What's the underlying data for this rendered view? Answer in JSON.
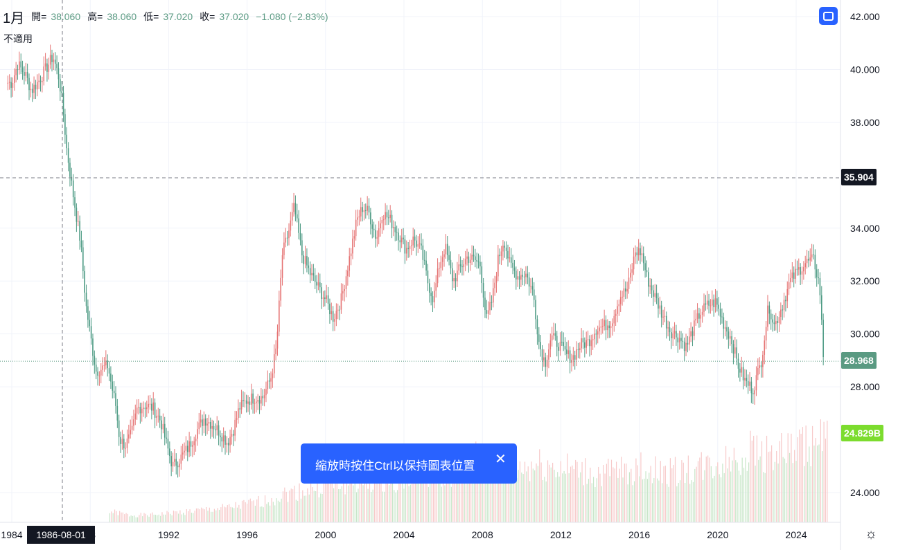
{
  "legend": {
    "symbol": "1月",
    "open_label": "開=",
    "open": "38.060",
    "high_label": "高=",
    "high": "38.060",
    "low_label": "低=",
    "low": "37.020",
    "close_label": "收=",
    "close": "37.020",
    "change": "−1.080 (−2.83%)",
    "subtitle": "不適用"
  },
  "price_axis_labels": [
    "42.000",
    "40.000",
    "38.000",
    "34.000",
    "32.000",
    "30.000",
    "28.000",
    "24.000"
  ],
  "time_axis_labels": [
    "1984",
    "8",
    "1992",
    "1996",
    "2000",
    "2004",
    "2008",
    "2012",
    "2016",
    "2020",
    "2024"
  ],
  "crosshair_price": "35.904",
  "crosshair_date": "1986-08-01",
  "last_price": "28.968",
  "volume_label": "24.829B",
  "toast": {
    "message": "縮放時按住Ctrl以保持圖表位置",
    "close": "✕"
  },
  "colors": {
    "up": "#ef9a9a",
    "up_candle": "#e57373",
    "down": "#26a69a",
    "down_candle": "#4c9a83",
    "last_price_tag": "#5a9a82",
    "volume_tag": "#7cdc2e",
    "crosshair_tag": "#131722",
    "button": "#2962ff",
    "grid": "#f0f3fa"
  },
  "chart_data": {
    "type": "candlestick",
    "interval": "1月",
    "y_unit": "price",
    "ylim": [
      23,
      43
    ],
    "xlim": [
      1983.7,
      2026.0
    ],
    "series": [
      {
        "name": "price",
        "points": [
          [
            1984.0,
            39.5
          ],
          [
            1984.3,
            40.2
          ],
          [
            1984.7,
            39.8
          ],
          [
            1985.0,
            39.2
          ],
          [
            1985.4,
            39.6
          ],
          [
            1985.8,
            40.1
          ],
          [
            1986.1,
            40.5
          ],
          [
            1986.4,
            39.7
          ],
          [
            1986.6,
            38.6
          ],
          [
            1986.8,
            37.0
          ],
          [
            1987.1,
            35.4
          ],
          [
            1987.5,
            33.5
          ],
          [
            1987.8,
            31.0
          ],
          [
            1988.1,
            29.5
          ],
          [
            1988.3,
            28.6
          ],
          [
            1988.6,
            28.7
          ],
          [
            1988.9,
            28.8
          ],
          [
            1989.1,
            28.0
          ],
          [
            1989.3,
            27.3
          ],
          [
            1989.5,
            26.0
          ],
          [
            1989.8,
            25.8
          ],
          [
            1990.1,
            26.2
          ],
          [
            1990.4,
            27.2
          ],
          [
            1990.8,
            27.3
          ],
          [
            1991.2,
            27.2
          ],
          [
            1991.6,
            26.7
          ],
          [
            1991.9,
            25.8
          ],
          [
            1992.2,
            25.0
          ],
          [
            1992.6,
            25.3
          ],
          [
            1993.0,
            25.7
          ],
          [
            1993.4,
            26.3
          ],
          [
            1993.8,
            26.8
          ],
          [
            1994.2,
            26.6
          ],
          [
            1994.6,
            26.3
          ],
          [
            1995.0,
            25.9
          ],
          [
            1995.3,
            26.4
          ],
          [
            1995.6,
            27.2
          ],
          [
            1996.0,
            27.5
          ],
          [
            1996.4,
            27.6
          ],
          [
            1996.8,
            27.6
          ],
          [
            1997.2,
            28.3
          ],
          [
            1997.5,
            29.5
          ],
          [
            1997.8,
            33.0
          ],
          [
            1998.1,
            33.8
          ],
          [
            1998.4,
            34.8
          ],
          [
            1998.8,
            33.0
          ],
          [
            1999.2,
            32.3
          ],
          [
            1999.6,
            31.8
          ],
          [
            2000.0,
            31.3
          ],
          [
            2000.4,
            30.6
          ],
          [
            2000.8,
            31.3
          ],
          [
            2001.2,
            32.8
          ],
          [
            2001.6,
            34.3
          ],
          [
            2001.9,
            34.8
          ],
          [
            2002.2,
            34.6
          ],
          [
            2002.6,
            33.6
          ],
          [
            2002.9,
            34.6
          ],
          [
            2003.3,
            34.3
          ],
          [
            2003.7,
            33.8
          ],
          [
            2004.1,
            33.2
          ],
          [
            2004.5,
            33.6
          ],
          [
            2004.9,
            33.1
          ],
          [
            2005.2,
            32.0
          ],
          [
            2005.5,
            31.3
          ],
          [
            2005.8,
            32.6
          ],
          [
            2006.1,
            33.3
          ],
          [
            2006.5,
            32.0
          ],
          [
            2006.8,
            32.4
          ],
          [
            2007.2,
            32.9
          ],
          [
            2007.6,
            32.8
          ],
          [
            2007.9,
            32.6
          ],
          [
            2008.2,
            30.5
          ],
          [
            2008.5,
            31.3
          ],
          [
            2008.8,
            32.8
          ],
          [
            2009.1,
            33.6
          ],
          [
            2009.4,
            32.6
          ],
          [
            2009.8,
            32.2
          ],
          [
            2010.2,
            32.3
          ],
          [
            2010.6,
            31.5
          ],
          [
            2010.9,
            29.6
          ],
          [
            2011.2,
            28.9
          ],
          [
            2011.5,
            29.9
          ],
          [
            2011.9,
            29.6
          ],
          [
            2012.3,
            29.2
          ],
          [
            2012.6,
            29.1
          ],
          [
            2013.0,
            29.6
          ],
          [
            2013.4,
            29.7
          ],
          [
            2013.8,
            30.2
          ],
          [
            2014.2,
            30.3
          ],
          [
            2014.6,
            30.5
          ],
          [
            2015.0,
            31.4
          ],
          [
            2015.4,
            31.7
          ],
          [
            2015.8,
            33.1
          ],
          [
            2016.1,
            33.1
          ],
          [
            2016.4,
            32.1
          ],
          [
            2016.8,
            31.4
          ],
          [
            2017.2,
            30.7
          ],
          [
            2017.6,
            30.1
          ],
          [
            2018.0,
            29.9
          ],
          [
            2018.4,
            29.5
          ],
          [
            2018.7,
            30.1
          ],
          [
            2019.1,
            30.8
          ],
          [
            2019.5,
            31.1
          ],
          [
            2019.9,
            31.2
          ],
          [
            2020.3,
            30.4
          ],
          [
            2020.7,
            29.8
          ],
          [
            2021.0,
            28.9
          ],
          [
            2021.4,
            28.2
          ],
          [
            2021.8,
            27.9
          ],
          [
            2022.2,
            28.9
          ],
          [
            2022.6,
            31.1
          ],
          [
            2022.9,
            30.3
          ],
          [
            2023.3,
            31.1
          ],
          [
            2023.7,
            32.0
          ],
          [
            2024.1,
            32.4
          ],
          [
            2024.5,
            32.7
          ],
          [
            2024.9,
            32.8
          ],
          [
            2025.2,
            31.8
          ],
          [
            2025.4,
            28.97
          ]
        ]
      },
      {
        "name": "volume",
        "points": [
          [
            1989,
            3
          ],
          [
            1990,
            2
          ],
          [
            1991,
            2
          ],
          [
            1992,
            2.5
          ],
          [
            1993,
            3
          ],
          [
            1994,
            3.5
          ],
          [
            1995,
            4
          ],
          [
            1996,
            5
          ],
          [
            1997,
            6
          ],
          [
            1998,
            8
          ],
          [
            1999,
            9
          ],
          [
            2000,
            10
          ],
          [
            2001,
            11
          ],
          [
            2002,
            11
          ],
          [
            2003,
            12
          ],
          [
            2004,
            12
          ],
          [
            2005,
            13
          ],
          [
            2006,
            13
          ],
          [
            2007,
            15
          ],
          [
            2008,
            18
          ],
          [
            2009,
            16
          ],
          [
            2010,
            15
          ],
          [
            2011,
            16
          ],
          [
            2012,
            15
          ],
          [
            2013,
            14
          ],
          [
            2014,
            13
          ],
          [
            2015,
            14
          ],
          [
            2016,
            15
          ],
          [
            2017,
            14
          ],
          [
            2018,
            14
          ],
          [
            2019,
            15
          ],
          [
            2020,
            16
          ],
          [
            2021,
            18
          ],
          [
            2022,
            20
          ],
          [
            2023,
            19
          ],
          [
            2024,
            20
          ],
          [
            2025,
            22
          ]
        ]
      }
    ],
    "crosshair": {
      "x": "1986-08-01",
      "y": 35.904
    },
    "last_price": 28.968,
    "grid": true
  }
}
